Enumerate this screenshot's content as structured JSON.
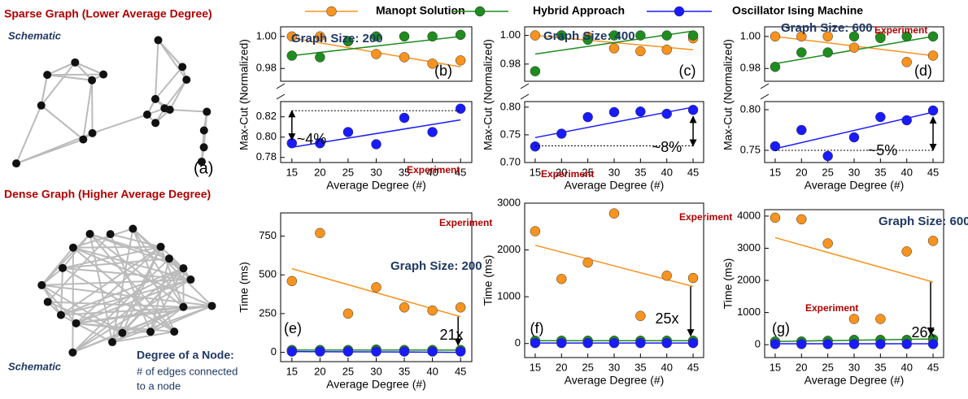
{
  "figure": {
    "sparse_title": "Sparse Graph (Lower Average Degree)",
    "dense_title": "Dense Graph (Higher Average Degree)",
    "schematic_top": "Schematic",
    "schematic_bottom": "Schematic",
    "panel_a": "(a)",
    "degree_title": "Degree of a Node:",
    "degree_line1": "# of edges connected",
    "degree_line2": "to a node"
  },
  "chart_data": [
    {
      "type": "scatter",
      "broken_axis": true,
      "title": "Graph Size: 200",
      "panel": "(b)",
      "annotation": "~4%",
      "note": "Experiment",
      "x_label": "Average Degree (#)",
      "y_label": "Max-Cut (Normalized)",
      "x": [
        15,
        20,
        25,
        30,
        35,
        40,
        45
      ],
      "xlim": [
        13,
        47
      ],
      "xticks": [
        15,
        20,
        25,
        30,
        35,
        40,
        45
      ],
      "segments": [
        {
          "ylim": [
            0.775,
            0.835
          ],
          "yticks": [
            0.78,
            {
              "value": 0.8,
              "label": "0.80"
            },
            0.82
          ]
        },
        {
          "ylim": [
            0.972,
            1.006
          ],
          "yticks": [
            0.98,
            {
              "value": 1,
              "label": "1.00"
            }
          ]
        }
      ],
      "reference_line": 0.826,
      "series": [
        {
          "name": "Manopt Solution",
          "color": "#f7931e",
          "segment": 1,
          "values": [
            1.0,
            1.0,
            0.997,
            0.989,
            0.987,
            0.983,
            0.985
          ],
          "trend": [
            0.999,
            0.981
          ]
        },
        {
          "name": "Hybrid Approach",
          "color": "#1e8c1e",
          "segment": 1,
          "values": [
            0.988,
            0.987,
            0.997,
            1.0,
            1.0,
            1.0,
            1.001
          ],
          "trend": [
            0.988,
            1.0
          ]
        },
        {
          "name": "Oscillator Ising Machine",
          "color": "#1a1aff",
          "segment": 0,
          "values": [
            0.794,
            0.794,
            0.805,
            0.793,
            0.819,
            0.805,
            0.828
          ],
          "trend": [
            0.79,
            0.817
          ]
        }
      ]
    },
    {
      "type": "scatter",
      "broken_axis": true,
      "title": "Graph Size: 400",
      "panel": "(c)",
      "annotation": "~8%",
      "note": "Experiment",
      "x_label": "Average Degree (#)",
      "y_label": "Max-Cut (Normalized)",
      "x": [
        15,
        20,
        25,
        30,
        35,
        40,
        45
      ],
      "xlim": [
        13,
        47
      ],
      "xticks": [
        15,
        20,
        25,
        30,
        35,
        40,
        45
      ],
      "segments": [
        {
          "ylim": [
            0.7,
            0.81
          ],
          "yticks": [
            {
              "value": 0.7,
              "label": "0.70"
            },
            0.75,
            {
              "value": 0.8,
              "label": "0.80"
            }
          ]
        },
        {
          "ylim": [
            0.968,
            1.006
          ],
          "yticks": [
            0.98,
            {
              "value": 1,
              "label": "1.00"
            }
          ]
        }
      ],
      "reference_line": 0.73,
      "series": [
        {
          "color": "#f7931e",
          "segment": 1,
          "values": [
            1.0,
            1.0,
            0.999,
            0.991,
            0.989,
            0.99,
            0.998
          ],
          "trend": [
            1.0,
            0.99
          ]
        },
        {
          "color": "#1e8c1e",
          "segment": 1,
          "values": [
            0.975,
            1.0,
            0.997,
            1.0,
            1.0,
            1.0,
            1.0
          ],
          "trend": [
            0.987,
            1.003
          ]
        },
        {
          "color": "#1a1aff",
          "segment": 0,
          "values": [
            0.729,
            0.752,
            0.782,
            0.791,
            0.792,
            0.788,
            0.795
          ],
          "trend": [
            0.745,
            0.8
          ]
        }
      ]
    },
    {
      "type": "scatter",
      "broken_axis": true,
      "title": "Graph Size: 600",
      "panel": "(d)",
      "annotation": "~5%",
      "note": "Experiment",
      "x_label": "Average Degree (#)",
      "y_label": "Max-Cut (Normalized)",
      "x": [
        15,
        20,
        25,
        30,
        35,
        40,
        45
      ],
      "xlim": [
        13,
        47
      ],
      "xticks": [
        15,
        20,
        25,
        30,
        35,
        40,
        45
      ],
      "segments": [
        {
          "ylim": [
            0.735,
            0.81
          ],
          "yticks": [
            0.75,
            {
              "value": 0.8,
              "label": "0.80"
            }
          ]
        },
        {
          "ylim": [
            0.972,
            1.006
          ],
          "yticks": [
            0.98,
            {
              "value": 1,
              "label": "1.00"
            }
          ]
        }
      ],
      "reference_line": 0.75,
      "series": [
        {
          "color": "#f7931e",
          "segment": 1,
          "values": [
            1.0,
            1.0,
            1.0,
            0.993,
            1.0,
            0.984,
            0.988
          ],
          "trend": [
            1.0,
            0.988
          ]
        },
        {
          "color": "#1e8c1e",
          "segment": 1,
          "values": [
            0.981,
            0.99,
            0.99,
            1.0,
            0.999,
            1.0,
            1.0
          ],
          "trend": [
            0.983,
            1.0
          ]
        },
        {
          "color": "#1a1aff",
          "segment": 0,
          "values": [
            0.755,
            0.775,
            0.743,
            0.766,
            0.791,
            0.787,
            0.799
          ],
          "trend": [
            0.752,
            0.797
          ]
        }
      ]
    },
    {
      "type": "scatter",
      "title": "Graph Size: 200",
      "panel": "(e)",
      "annotation": "21x",
      "note": "Experiment",
      "x_label": "Average Degree (#)",
      "y_label": "Time (ms)",
      "x": [
        15,
        20,
        25,
        30,
        35,
        40,
        45
      ],
      "xlim": [
        13,
        47
      ],
      "xticks": [
        15,
        20,
        25,
        30,
        35,
        40,
        45
      ],
      "ylim": [
        -60,
        900
      ],
      "yticks": [
        0,
        250,
        500,
        750
      ],
      "series": [
        {
          "color": "#f7931e",
          "values": [
            460,
            770,
            250,
            420,
            290,
            270,
            290
          ],
          "trend": [
            540,
            230
          ]
        },
        {
          "color": "#1e8c1e",
          "values": [
            15,
            15,
            15,
            18,
            15,
            15,
            15
          ],
          "trend": [
            15,
            15
          ]
        },
        {
          "color": "#1a1aff",
          "values": [
            5,
            5,
            5,
            5,
            5,
            5,
            5
          ],
          "trend": [
            5,
            0
          ]
        }
      ]
    },
    {
      "type": "scatter",
      "panel": "(f)",
      "annotation": "25x",
      "note": "Experiment",
      "x_label": "Average Degree (#)",
      "y_label": "Time (ms)",
      "x": [
        15,
        20,
        25,
        30,
        35,
        40,
        45
      ],
      "xlim": [
        13,
        47
      ],
      "xticks": [
        15,
        20,
        25,
        30,
        35,
        40,
        45
      ],
      "ylim": [
        -300,
        3000
      ],
      "yticks": [
        0,
        1000,
        2000,
        3000
      ],
      "series": [
        {
          "color": "#f7931e",
          "values": [
            2400,
            1380,
            1730,
            2780,
            590,
            1450,
            1400
          ],
          "trend": [
            2100,
            1220
          ]
        },
        {
          "color": "#1e8c1e",
          "values": [
            60,
            60,
            60,
            60,
            60,
            60,
            60
          ],
          "trend": [
            60,
            60
          ]
        },
        {
          "color": "#1a1aff",
          "values": [
            10,
            10,
            10,
            10,
            10,
            10,
            10
          ],
          "trend": [
            10,
            10
          ]
        }
      ]
    },
    {
      "type": "scatter",
      "title": "Graph Size: 600",
      "panel": "(g)",
      "annotation": "26x",
      "note": "Experiment",
      "x_label": "Average Degree (#)",
      "y_label": "Time (ms)",
      "x": [
        15,
        20,
        25,
        30,
        35,
        40,
        45
      ],
      "xlim": [
        13,
        47
      ],
      "xticks": [
        15,
        20,
        25,
        30,
        35,
        40,
        45
      ],
      "ylim": [
        -400,
        4200
      ],
      "yticks": [
        0,
        1000,
        2000,
        3000,
        4000
      ],
      "series": [
        {
          "color": "#f7931e",
          "values": [
            3950,
            3900,
            3150,
            800,
            800,
            2900,
            3230
          ],
          "trend": [
            3330,
            1950
          ]
        },
        {
          "color": "#1e8c1e",
          "values": [
            100,
            100,
            120,
            150,
            150,
            150,
            170
          ],
          "trend": [
            100,
            180
          ]
        },
        {
          "color": "#1a1aff",
          "values": [
            20,
            20,
            20,
            20,
            20,
            20,
            20
          ],
          "trend": [
            30,
            30
          ]
        }
      ]
    }
  ]
}
